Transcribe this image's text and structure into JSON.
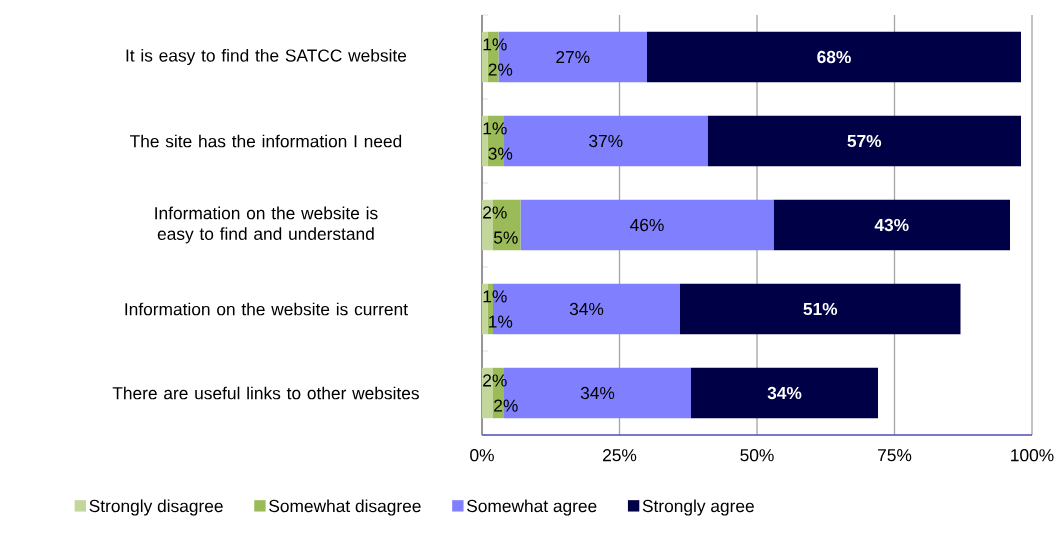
{
  "chart_data": {
    "type": "bar",
    "orientation": "horizontal",
    "stacked": true,
    "categories": [
      "It is easy to find the SATCC website",
      "The site has the information I need",
      "Information on the website is easy to find and understand",
      "Information on the website is current",
      "There are useful links to other websites"
    ],
    "series": [
      {
        "name": "Strongly disagree",
        "color": "#c3d69b",
        "values": [
          1,
          1,
          2,
          1,
          2
        ],
        "value_labels": [
          "1%",
          "1%",
          "2%",
          "1%",
          "2%"
        ]
      },
      {
        "name": "Somewhat disagree",
        "color": "#9bbb59",
        "values": [
          2,
          3,
          5,
          1,
          2
        ],
        "value_labels": [
          "2%",
          "3%",
          "5%",
          "1%",
          "2%"
        ]
      },
      {
        "name": "Somewhat agree",
        "color": "#8080ff",
        "values": [
          27,
          37,
          46,
          34,
          34
        ],
        "value_labels": [
          "27%",
          "37%",
          "46%",
          "34%",
          "34%"
        ]
      },
      {
        "name": "Strongly agree",
        "color": "#000046",
        "values": [
          68,
          57,
          43,
          51,
          34
        ],
        "value_labels": [
          "68%",
          "57%",
          "43%",
          "51%",
          "34%"
        ]
      }
    ],
    "xlim": [
      0,
      100
    ],
    "xticks": [
      {
        "value": 0,
        "label": "0%"
      },
      {
        "value": 25,
        "label": "25%"
      },
      {
        "value": 50,
        "label": "50%"
      },
      {
        "value": 75,
        "label": "75%"
      },
      {
        "value": 100,
        "label": "100%"
      }
    ],
    "grid": "x",
    "legend": "bottom"
  }
}
